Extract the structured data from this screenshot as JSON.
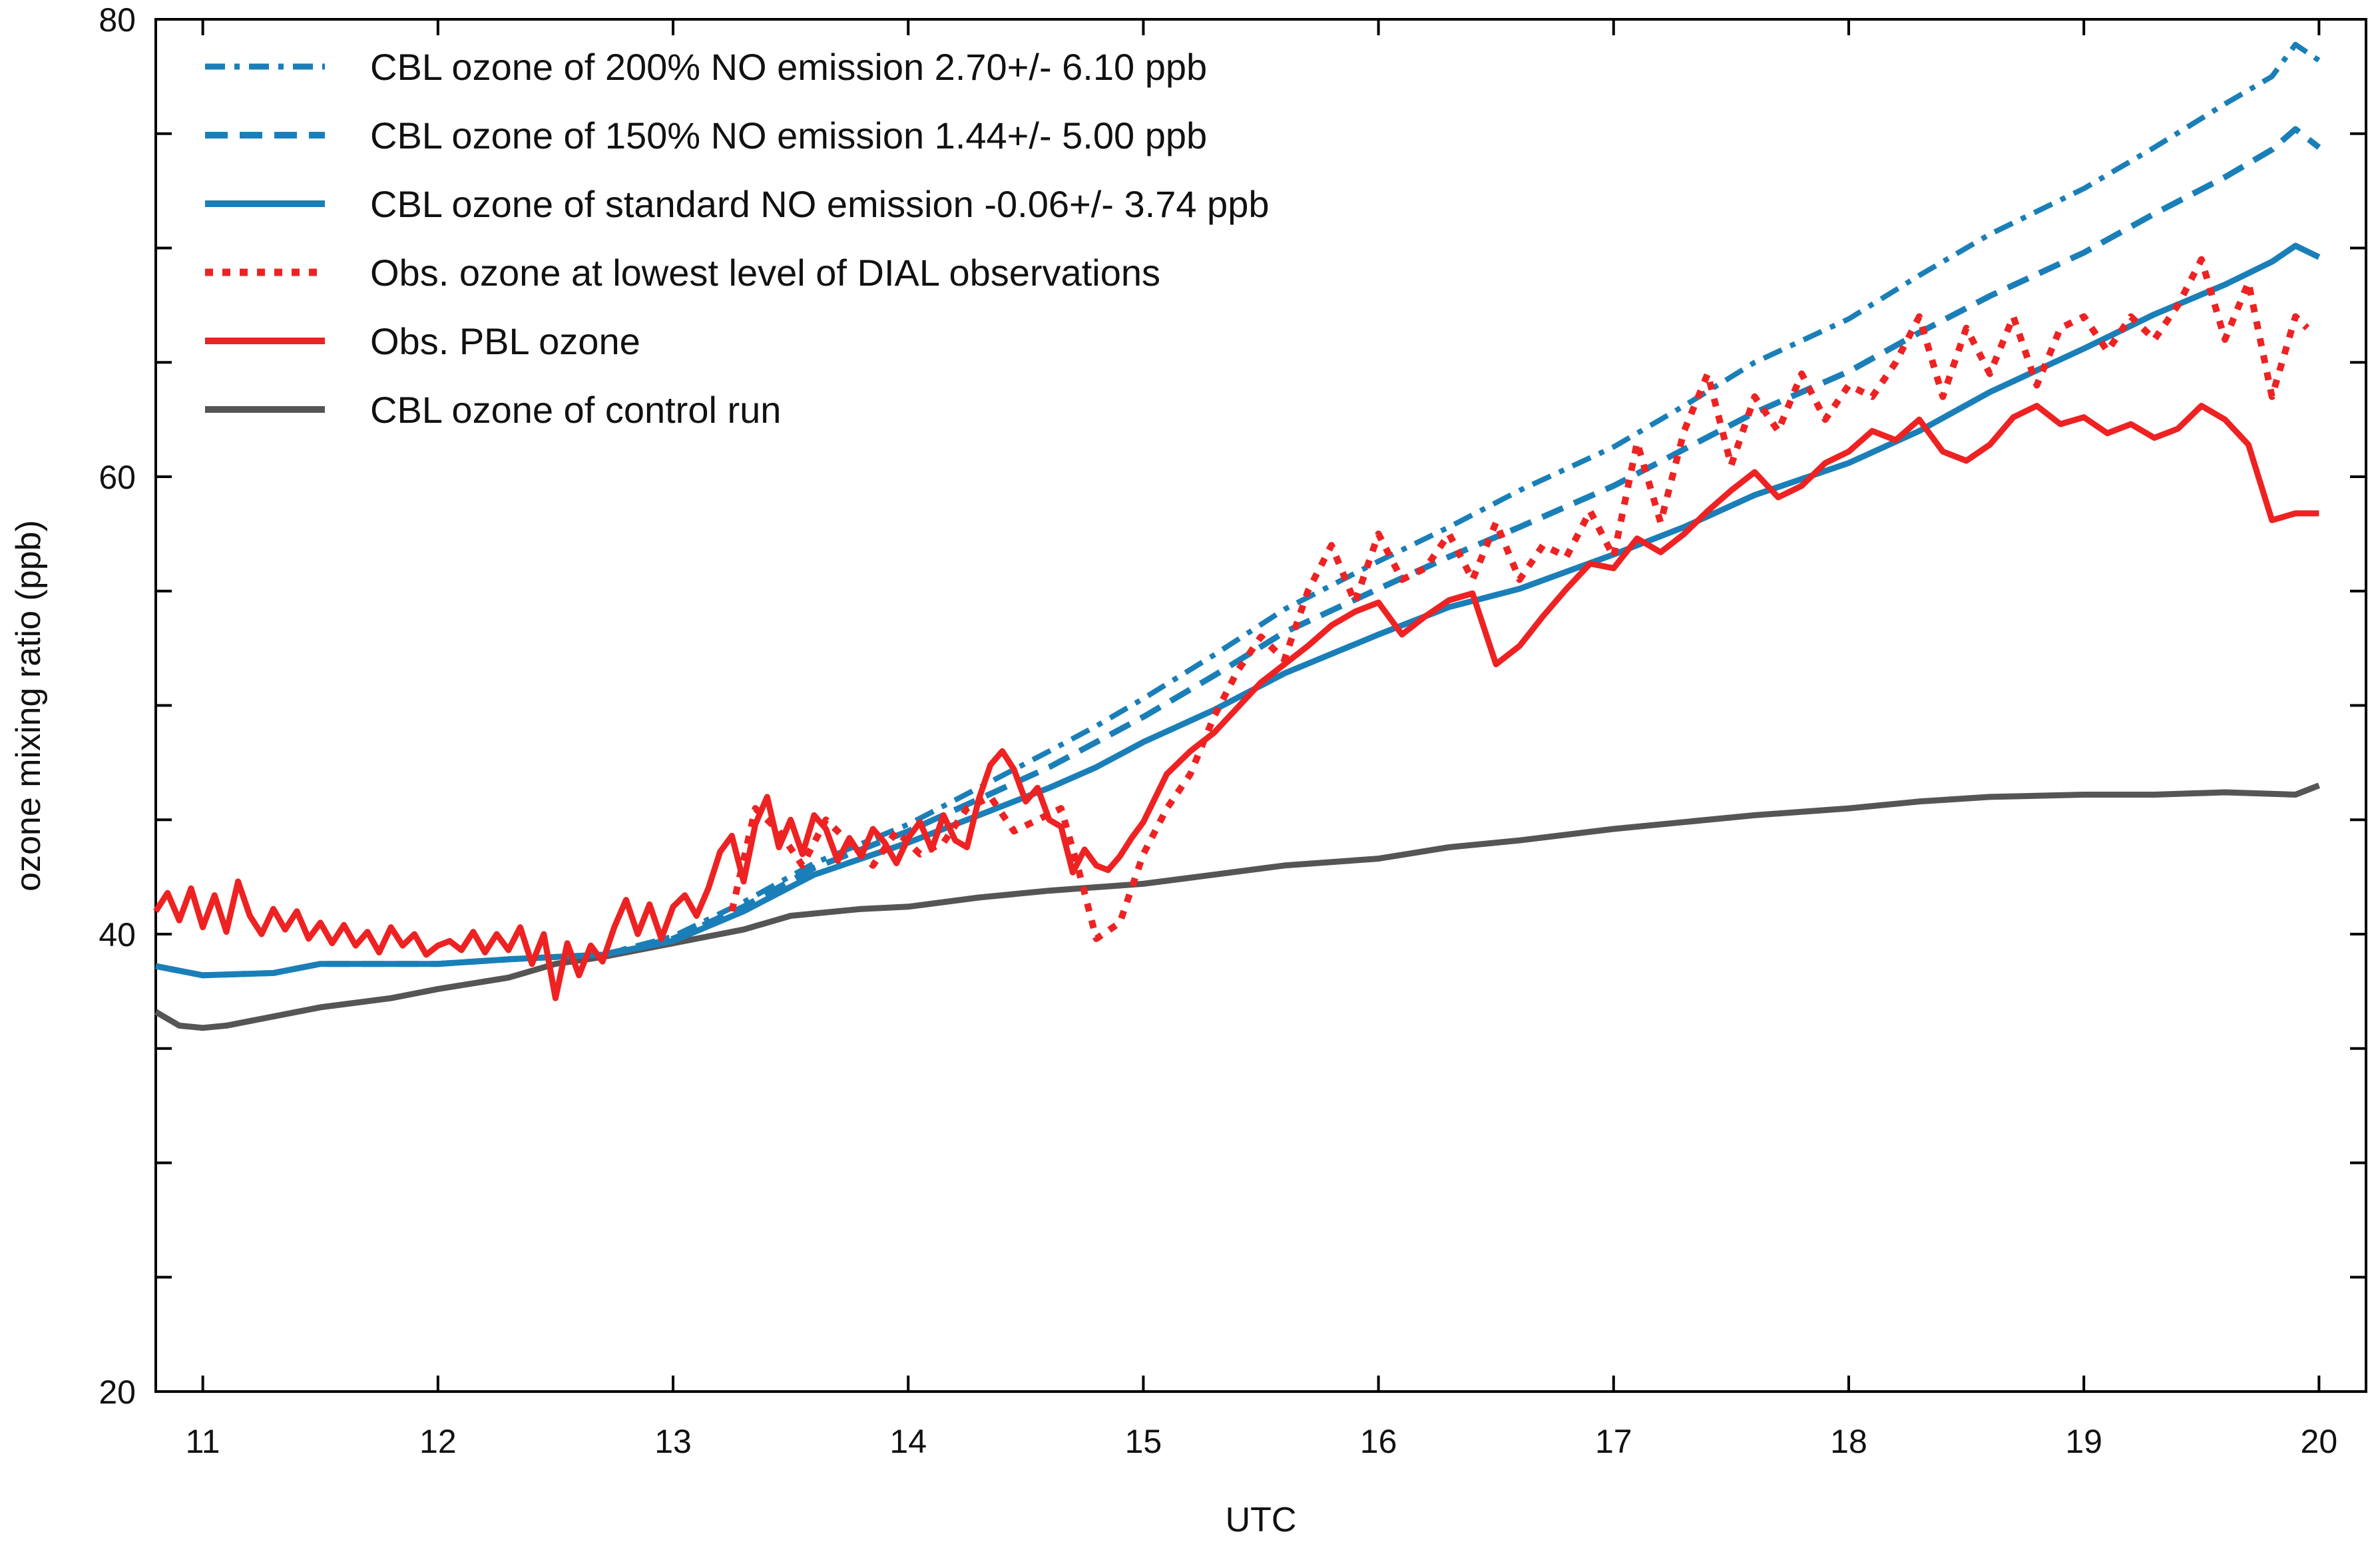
{
  "chart_data": {
    "type": "line",
    "title": "",
    "xlabel": "UTC",
    "ylabel": "ozone mixing ratio (ppb)",
    "xlim": [
      10.8,
      20.2
    ],
    "ylim": [
      20,
      80
    ],
    "xticks": [
      11,
      12,
      13,
      14,
      15,
      16,
      17,
      18,
      19,
      20
    ],
    "yticks_labeled": [
      20,
      40,
      60,
      80
    ],
    "yticks_minor": [
      25,
      30,
      35,
      45,
      50,
      55,
      65,
      70,
      75
    ],
    "legend_position": "top-left",
    "series": [
      {
        "name": "CBL ozone of 200% NO emission 2.70+/- 6.10 ppb",
        "color": "#1a7fb8",
        "dash": "dashdot",
        "x": [
          10.8,
          11.0,
          11.3,
          11.5,
          12.0,
          12.3,
          12.7,
          13.0,
          13.3,
          13.6,
          14.0,
          14.3,
          14.6,
          14.8,
          15.0,
          15.3,
          15.6,
          16.0,
          16.3,
          16.6,
          17.0,
          17.3,
          17.6,
          18.0,
          18.3,
          18.6,
          19.0,
          19.3,
          19.6,
          19.8,
          19.9,
          20.0
        ],
        "y": [
          38.6,
          38.2,
          38.3,
          38.7,
          38.7,
          38.9,
          39.1,
          39.9,
          41.4,
          43.1,
          44.8,
          46.4,
          48.0,
          49.1,
          50.3,
          52.2,
          54.2,
          56.3,
          57.8,
          59.4,
          61.3,
          63.1,
          65.0,
          66.9,
          68.8,
          70.6,
          72.6,
          74.4,
          76.3,
          77.5,
          78.9,
          78.2
        ]
      },
      {
        "name": "CBL ozone of 150% NO emission 1.44+/- 5.00 ppb",
        "color": "#1a7fb8",
        "dash": "dash",
        "x": [
          10.8,
          11.0,
          11.3,
          11.5,
          12.0,
          12.3,
          12.7,
          13.0,
          13.3,
          13.6,
          14.0,
          14.3,
          14.6,
          14.8,
          15.0,
          15.3,
          15.6,
          16.0,
          16.3,
          16.6,
          17.0,
          17.3,
          17.6,
          18.0,
          18.3,
          18.6,
          19.0,
          19.3,
          19.6,
          19.8,
          19.9,
          20.0
        ],
        "y": [
          38.6,
          38.2,
          38.3,
          38.7,
          38.7,
          38.9,
          39.1,
          39.8,
          41.2,
          42.9,
          44.5,
          45.9,
          47.3,
          48.4,
          49.5,
          51.3,
          53.2,
          55.1,
          56.5,
          57.8,
          59.6,
          61.2,
          62.8,
          64.6,
          66.3,
          67.9,
          69.8,
          71.5,
          73.1,
          74.3,
          75.2,
          74.4
        ]
      },
      {
        "name": "CBL ozone of standard NO emission -0.06+/- 3.74 ppb",
        "color": "#1a7fb8",
        "dash": "solid",
        "x": [
          10.8,
          11.0,
          11.3,
          11.5,
          12.0,
          12.3,
          12.7,
          13.0,
          13.3,
          13.6,
          14.0,
          14.3,
          14.6,
          14.8,
          15.0,
          15.3,
          15.6,
          16.0,
          16.3,
          16.6,
          17.0,
          17.3,
          17.6,
          18.0,
          18.3,
          18.6,
          19.0,
          19.3,
          19.6,
          19.8,
          19.9,
          20.0
        ],
        "y": [
          38.6,
          38.2,
          38.3,
          38.7,
          38.7,
          38.9,
          39.1,
          39.7,
          41.0,
          42.6,
          44.0,
          45.2,
          46.4,
          47.3,
          48.4,
          49.8,
          51.4,
          53.1,
          54.3,
          55.1,
          56.6,
          57.8,
          59.2,
          60.6,
          62.0,
          63.7,
          65.6,
          67.1,
          68.4,
          69.4,
          70.1,
          69.6
        ]
      },
      {
        "name": "Obs. ozone at lowest level of DIAL observations",
        "color": "#ee2222",
        "dash": "dot",
        "x": [
          13.25,
          13.35,
          13.45,
          13.55,
          13.65,
          13.75,
          13.85,
          13.95,
          14.05,
          14.15,
          14.25,
          14.35,
          14.45,
          14.55,
          14.65,
          14.72,
          14.8,
          14.9,
          15.0,
          15.1,
          15.2,
          15.3,
          15.4,
          15.5,
          15.6,
          15.7,
          15.8,
          15.9,
          16.0,
          16.1,
          16.2,
          16.3,
          16.4,
          16.5,
          16.6,
          16.7,
          16.8,
          16.9,
          17.0,
          17.1,
          17.2,
          17.3,
          17.4,
          17.5,
          17.6,
          17.7,
          17.8,
          17.9,
          18.0,
          18.1,
          18.2,
          18.3,
          18.4,
          18.5,
          18.6,
          18.7,
          18.8,
          18.9,
          19.0,
          19.1,
          19.2,
          19.3,
          19.4,
          19.5,
          19.6,
          19.7,
          19.8,
          19.9,
          19.95
        ],
        "y": [
          41.0,
          45.5,
          44.5,
          43.0,
          45.0,
          44.0,
          43.0,
          44.5,
          43.5,
          44.0,
          45.5,
          46.0,
          44.5,
          45.0,
          45.5,
          43.0,
          39.8,
          40.5,
          43.5,
          45.5,
          47.0,
          49.5,
          51.5,
          53.0,
          52.0,
          55.0,
          57.0,
          54.5,
          57.5,
          55.5,
          56.0,
          57.5,
          55.5,
          58.0,
          55.5,
          57.0,
          56.5,
          58.5,
          56.5,
          61.5,
          58.0,
          62.0,
          64.5,
          60.5,
          63.5,
          62.0,
          64.5,
          62.5,
          64.0,
          63.5,
          65.0,
          67.0,
          63.5,
          66.5,
          64.5,
          67.0,
          64.0,
          66.5,
          67.0,
          65.5,
          67.0,
          66.0,
          67.5,
          69.5,
          66.0,
          68.5,
          63.5,
          67.0,
          66.5
        ]
      },
      {
        "name": "Obs. PBL ozone",
        "color": "#ee2222",
        "dash": "solid",
        "x": [
          10.8,
          10.85,
          10.9,
          10.95,
          11.0,
          11.05,
          11.1,
          11.15,
          11.2,
          11.25,
          11.3,
          11.35,
          11.4,
          11.45,
          11.5,
          11.55,
          11.6,
          11.65,
          11.7,
          11.75,
          11.8,
          11.85,
          11.9,
          11.95,
          12.0,
          12.05,
          12.1,
          12.15,
          12.2,
          12.25,
          12.3,
          12.35,
          12.4,
          12.45,
          12.5,
          12.55,
          12.6,
          12.65,
          12.7,
          12.75,
          12.8,
          12.85,
          12.9,
          12.95,
          13.0,
          13.05,
          13.1,
          13.15,
          13.2,
          13.25,
          13.3,
          13.35,
          13.4,
          13.45,
          13.5,
          13.55,
          13.6,
          13.65,
          13.7,
          13.75,
          13.8,
          13.85,
          13.9,
          13.95,
          14.0,
          14.05,
          14.1,
          14.15,
          14.2,
          14.25,
          14.3,
          14.35,
          14.4,
          14.45,
          14.5,
          14.55,
          14.6,
          14.65,
          14.7,
          14.75,
          14.8,
          14.85,
          14.9,
          14.95,
          15.0,
          15.1,
          15.2,
          15.3,
          15.4,
          15.5,
          15.6,
          15.7,
          15.8,
          15.9,
          16.0,
          16.1,
          16.2,
          16.3,
          16.4,
          16.5,
          16.6,
          16.7,
          16.8,
          16.9,
          17.0,
          17.1,
          17.2,
          17.3,
          17.4,
          17.5,
          17.6,
          17.7,
          17.8,
          17.9,
          18.0,
          18.1,
          18.2,
          18.3,
          18.4,
          18.5,
          18.6,
          18.7,
          18.8,
          18.9,
          19.0,
          19.1,
          19.2,
          19.3,
          19.4,
          19.5,
          19.6,
          19.7,
          19.8,
          19.9,
          20.0
        ],
        "y": [
          41.0,
          41.8,
          40.6,
          42.0,
          40.3,
          41.7,
          40.1,
          42.3,
          40.8,
          40.0,
          41.1,
          40.2,
          41.0,
          39.8,
          40.5,
          39.6,
          40.4,
          39.5,
          40.1,
          39.2,
          40.3,
          39.5,
          40.0,
          39.1,
          39.5,
          39.7,
          39.3,
          40.1,
          39.2,
          40.0,
          39.3,
          40.3,
          38.7,
          40.0,
          37.2,
          39.6,
          38.2,
          39.5,
          38.8,
          40.3,
          41.5,
          40.0,
          41.3,
          39.8,
          41.2,
          41.7,
          40.8,
          42.0,
          43.6,
          44.3,
          42.3,
          44.8,
          46.0,
          43.8,
          45.0,
          43.5,
          45.2,
          44.6,
          43.2,
          44.2,
          43.4,
          44.6,
          44.0,
          43.1,
          44.2,
          44.9,
          43.7,
          45.2,
          44.1,
          43.8,
          45.9,
          47.4,
          48.0,
          47.2,
          45.8,
          46.4,
          45.0,
          44.7,
          42.7,
          43.7,
          43.0,
          42.8,
          43.4,
          44.2,
          44.9,
          47.0,
          48.0,
          48.8,
          49.9,
          51.0,
          51.8,
          52.6,
          53.5,
          54.1,
          54.5,
          53.1,
          53.9,
          54.6,
          54.9,
          51.8,
          52.6,
          53.9,
          55.1,
          56.2,
          56.0,
          57.3,
          56.7,
          57.5,
          58.5,
          59.4,
          60.2,
          59.1,
          59.6,
          60.6,
          61.1,
          62.0,
          61.6,
          62.5,
          61.1,
          60.7,
          61.4,
          62.6,
          63.1,
          62.3,
          62.6,
          61.9,
          62.3,
          61.7,
          62.1,
          63.1,
          62.5,
          61.4,
          58.1,
          58.4,
          58.4
        ]
      },
      {
        "name": "CBL ozone of control run",
        "color": "#555555",
        "dash": "solid",
        "x": [
          10.8,
          10.9,
          11.0,
          11.1,
          11.3,
          11.5,
          11.8,
          12.0,
          12.3,
          12.5,
          12.7,
          13.0,
          13.3,
          13.5,
          13.8,
          14.0,
          14.3,
          14.6,
          15.0,
          15.3,
          15.6,
          16.0,
          16.3,
          16.6,
          17.0,
          17.3,
          17.6,
          18.0,
          18.3,
          18.6,
          19.0,
          19.3,
          19.6,
          19.9,
          20.0
        ],
        "y": [
          36.6,
          36.0,
          35.9,
          36.0,
          36.4,
          36.8,
          37.2,
          37.6,
          38.1,
          38.7,
          39.0,
          39.6,
          40.2,
          40.8,
          41.1,
          41.2,
          41.6,
          41.9,
          42.2,
          42.6,
          43.0,
          43.3,
          43.8,
          44.1,
          44.6,
          44.9,
          45.2,
          45.5,
          45.8,
          46.0,
          46.1,
          46.1,
          46.2,
          46.1,
          46.5
        ]
      }
    ]
  }
}
